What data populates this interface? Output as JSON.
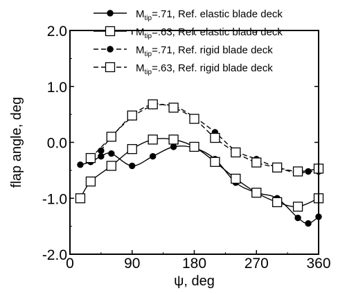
{
  "chart_data": {
    "type": "line",
    "xlabel": "ψ, deg",
    "ylabel": "flap angle, deg",
    "xlim": [
      0,
      360
    ],
    "ylim": [
      -2.0,
      2.0
    ],
    "xticks": [
      0,
      90,
      180,
      270,
      360
    ],
    "xtick_labels": [
      "0",
      "90",
      "180",
      "270",
      "360"
    ],
    "yticks": [
      -2.0,
      -1.0,
      0.0,
      1.0,
      2.0
    ],
    "ytick_labels": [
      "-2.0",
      "-1.0",
      "0.0",
      "1.0",
      "2.0"
    ],
    "grid": false,
    "legend_position": "top-right",
    "series": [
      {
        "name": "M_tip=.71, Ref. elastic blade deck",
        "legend": {
          "m": "M",
          "sub": "tip",
          "rest": "=.71, Ref. elastic blade deck"
        },
        "marker": "filled-circle",
        "line": "solid",
        "color": "#000000",
        "x": [
          15,
          30,
          45,
          60,
          90,
          120,
          150,
          180,
          210,
          240,
          270,
          300,
          330,
          345,
          360
        ],
        "y": [
          -0.4,
          -0.35,
          -0.25,
          -0.2,
          -0.42,
          -0.25,
          -0.08,
          -0.1,
          -0.3,
          -0.72,
          -0.9,
          -1.0,
          -1.35,
          -1.45,
          -1.33
        ]
      },
      {
        "name": "M_tip=.63, Ref. elastic blade deck",
        "legend": {
          "m": "M",
          "sub": "tip",
          "rest": "=.63, Ref. elastic blade deck"
        },
        "marker": "open-square",
        "line": "solid",
        "color": "#000000",
        "x": [
          15,
          30,
          60,
          90,
          120,
          150,
          180,
          210,
          240,
          270,
          300,
          330,
          360
        ],
        "y": [
          -1.0,
          -0.7,
          -0.42,
          -0.12,
          0.05,
          0.05,
          -0.08,
          -0.35,
          -0.65,
          -0.9,
          -1.07,
          -1.15,
          -1.0
        ]
      },
      {
        "name": "M_tip=.71, Ref. rigid blade deck",
        "legend": {
          "m": "M",
          "sub": "tip",
          "rest": "=.71, Ref. rigid blade deck"
        },
        "marker": "filled-circle",
        "line": "dashed",
        "color": "#000000",
        "x": [
          45,
          60,
          90,
          120,
          150,
          180,
          210,
          240,
          270,
          300,
          330,
          345,
          360
        ],
        "y": [
          -0.15,
          0.1,
          0.45,
          0.65,
          0.65,
          0.45,
          0.18,
          -0.15,
          -0.3,
          -0.45,
          -0.55,
          -0.52,
          -0.52
        ]
      },
      {
        "name": "M_tip=.63, Ref. rigid blade deck",
        "legend": {
          "m": "M",
          "sub": "tip",
          "rest": "=.63, Ref. rigid blade deck"
        },
        "marker": "open-square",
        "line": "dashed",
        "color": "#000000",
        "x": [
          30,
          60,
          90,
          120,
          150,
          180,
          210,
          240,
          270,
          300,
          330,
          360
        ],
        "y": [
          -0.28,
          0.1,
          0.48,
          0.68,
          0.62,
          0.42,
          0.08,
          -0.18,
          -0.36,
          -0.45,
          -0.52,
          -0.47
        ]
      }
    ]
  }
}
